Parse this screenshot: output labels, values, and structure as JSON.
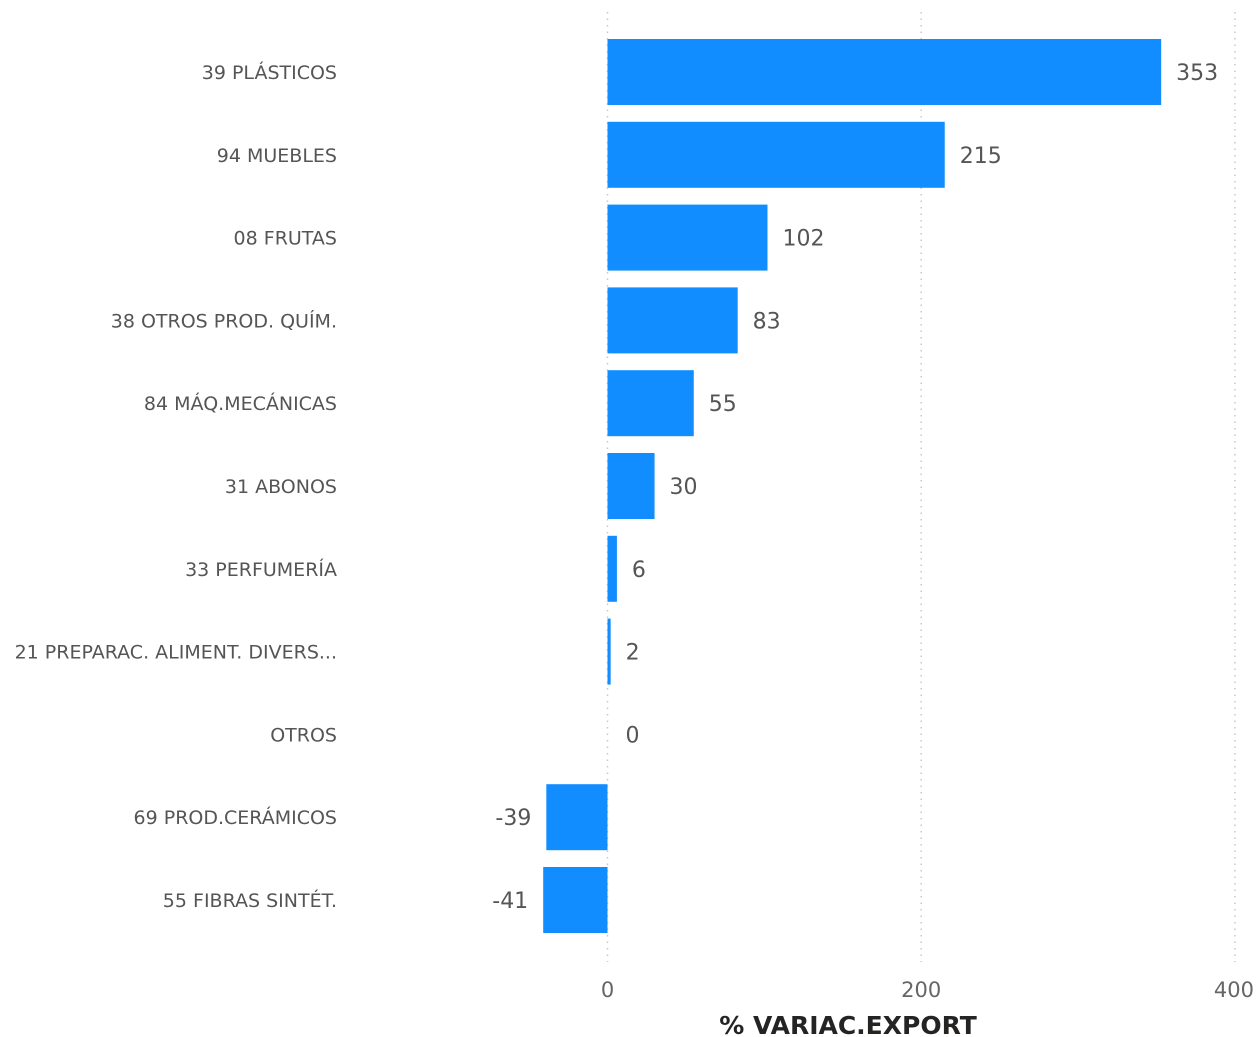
{
  "chart_data": {
    "type": "bar",
    "orientation": "horizontal",
    "categories": [
      "39 PLÁSTICOS",
      "94 MUEBLES",
      "08 FRUTAS",
      "38 OTROS PROD. QUÍM.",
      "84 MÁQ.MECÁNICAS",
      "31 ABONOS",
      "33 PERFUMERÍA",
      "21 PREPARAC. ALIMENT. DIVERS...",
      "OTROS",
      "69 PROD.CERÁMICOS",
      "55 FIBRAS SINTÉT."
    ],
    "values": [
      353,
      215,
      102,
      83,
      55,
      30,
      6,
      2,
      0,
      -39,
      -41
    ],
    "data_labels": [
      "353",
      "215",
      "102",
      "83",
      "55",
      "30",
      "6",
      "2",
      "0",
      "-39",
      "-41"
    ],
    "xlabel": "% VARIAC.EXPORT",
    "ylabel": "",
    "xlim": [
      -45,
      400
    ],
    "xticks": [
      0,
      200,
      400
    ],
    "xtick_labels": [
      "0",
      "200",
      "400"
    ],
    "grid": "vertical dotted",
    "bar_color": "#118DFF"
  }
}
